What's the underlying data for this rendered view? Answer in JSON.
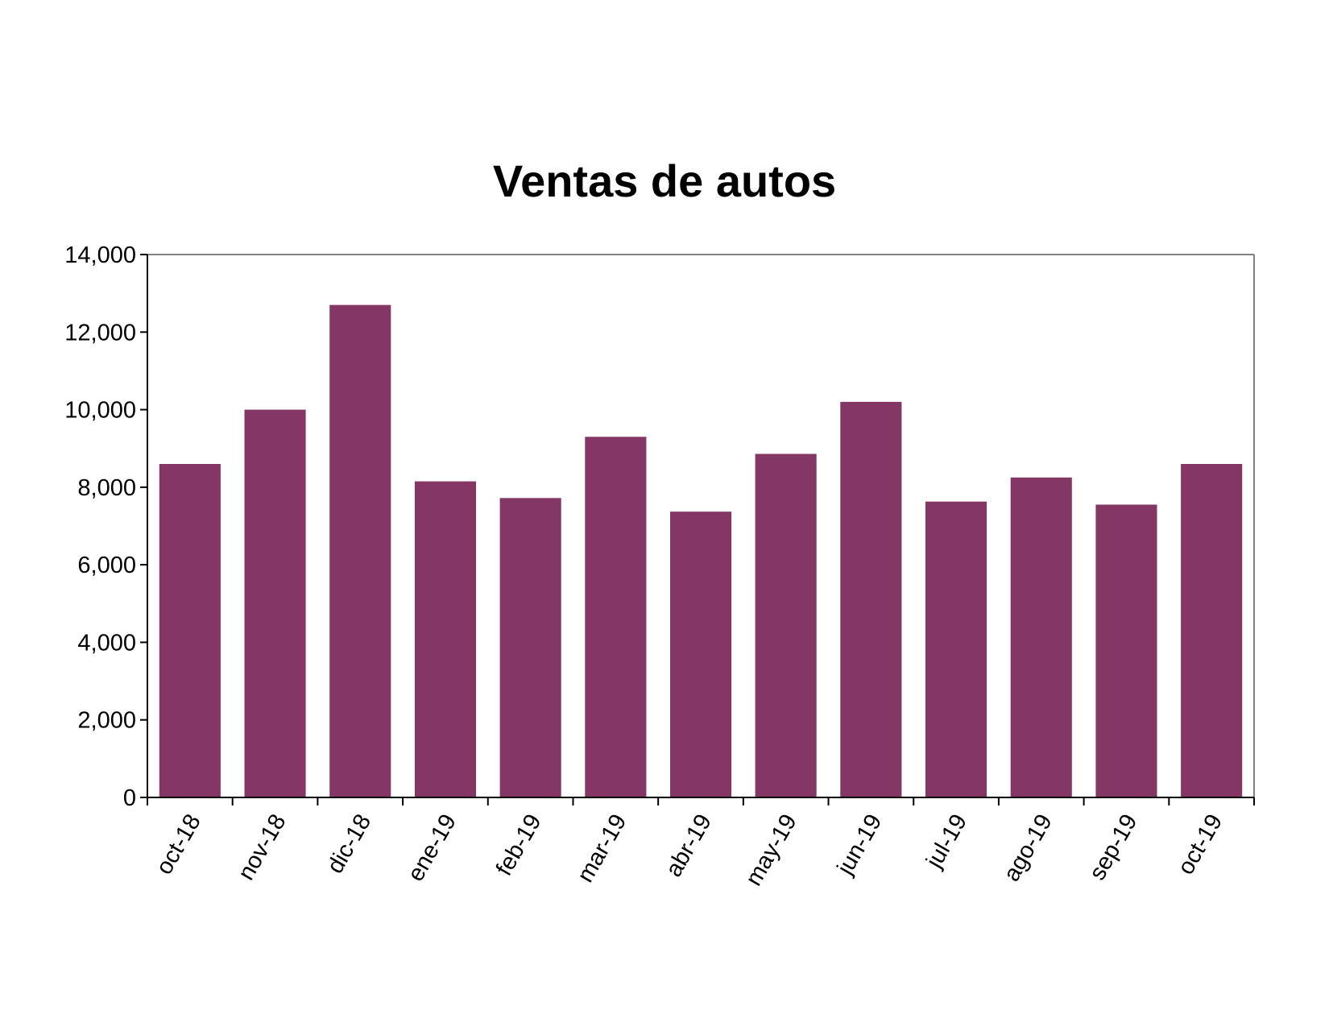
{
  "chart_data": {
    "type": "bar",
    "title": "Ventas de autos",
    "xlabel": "",
    "ylabel": "",
    "categories": [
      "oct-18",
      "nov-18",
      "dic-18",
      "ene-19",
      "feb-19",
      "mar-19",
      "abr-19",
      "may-19",
      "jun-19",
      "jul-19",
      "ago-19",
      "sep-19",
      "oct-19"
    ],
    "values": [
      8600,
      10000,
      12700,
      8150,
      7720,
      9300,
      7370,
      8860,
      10200,
      7630,
      8250,
      7550,
      8600
    ],
    "ylim": [
      0,
      14000
    ],
    "yticks": [
      "0",
      "2,000",
      "4,000",
      "6,000",
      "8,000",
      "10,000",
      "12,000",
      "14,000"
    ],
    "grid": false,
    "legend": "none",
    "bar_color": "#843764",
    "axis_color": "#000000",
    "frame_color": "#808080"
  }
}
